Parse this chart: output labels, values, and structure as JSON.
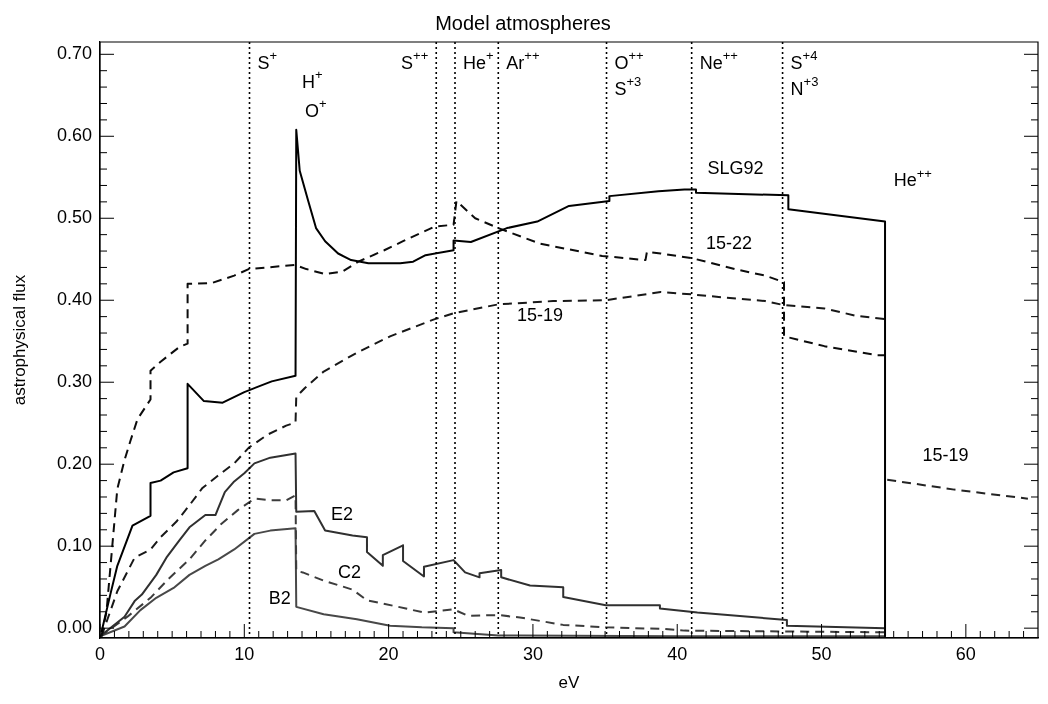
{
  "chart_data": {
    "type": "line",
    "title": "Model atmospheres",
    "xlabel": "eV",
    "ylabel": "astrophysical flux",
    "xlim": [
      0,
      65
    ],
    "ylim": [
      -0.012,
      0.715
    ],
    "xticks": [
      0,
      {
        "value": 1,
        "label": null
      },
      {
        "value": 2,
        "label": null
      },
      {
        "value": 3,
        "label": null
      },
      {
        "value": 4,
        "label": null
      },
      {
        "value": 5,
        "label": null
      },
      {
        "value": 6,
        "label": null
      },
      {
        "value": 7,
        "label": null
      },
      {
        "value": 8,
        "label": null
      },
      {
        "value": 9,
        "label": null
      },
      10,
      {
        "value": 11,
        "label": null
      },
      {
        "value": 12,
        "label": null
      },
      {
        "value": 13,
        "label": null
      },
      {
        "value": 14,
        "label": null
      },
      {
        "value": 15,
        "label": null
      },
      {
        "value": 16,
        "label": null
      },
      {
        "value": 17,
        "label": null
      },
      {
        "value": 18,
        "label": null
      },
      {
        "value": 19,
        "label": null
      },
      20,
      {
        "value": 21,
        "label": null
      },
      {
        "value": 22,
        "label": null
      },
      {
        "value": 23,
        "label": null
      },
      {
        "value": 24,
        "label": null
      },
      {
        "value": 25,
        "label": null
      },
      {
        "value": 26,
        "label": null
      },
      {
        "value": 27,
        "label": null
      },
      {
        "value": 28,
        "label": null
      },
      {
        "value": 29,
        "label": null
      },
      30,
      {
        "value": 31,
        "label": null
      },
      {
        "value": 32,
        "label": null
      },
      {
        "value": 33,
        "label": null
      },
      {
        "value": 34,
        "label": null
      },
      {
        "value": 35,
        "label": null
      },
      {
        "value": 36,
        "label": null
      },
      {
        "value": 37,
        "label": null
      },
      {
        "value": 38,
        "label": null
      },
      {
        "value": 39,
        "label": null
      },
      40,
      {
        "value": 41,
        "label": null
      },
      {
        "value": 42,
        "label": null
      },
      {
        "value": 43,
        "label": null
      },
      {
        "value": 44,
        "label": null
      },
      {
        "value": 45,
        "label": null
      },
      {
        "value": 46,
        "label": null
      },
      {
        "value": 47,
        "label": null
      },
      {
        "value": 48,
        "label": null
      },
      {
        "value": 49,
        "label": null
      },
      50,
      {
        "value": 51,
        "label": null
      },
      {
        "value": 52,
        "label": null
      },
      {
        "value": 53,
        "label": null
      },
      {
        "value": 54,
        "label": null
      },
      {
        "value": 55,
        "label": null
      },
      {
        "value": 56,
        "label": null
      },
      {
        "value": 57,
        "label": null
      },
      {
        "value": 58,
        "label": null
      },
      {
        "value": 59,
        "label": null
      },
      60,
      {
        "value": 61,
        "label": null
      },
      {
        "value": 62,
        "label": null
      },
      {
        "value": 63,
        "label": null
      },
      {
        "value": 64,
        "label": null
      }
    ],
    "yticks": [
      {
        "value": 0,
        "label": "0.00"
      },
      {
        "value": 0.02,
        "label": null
      },
      {
        "value": 0.04,
        "label": null
      },
      {
        "value": 0.06,
        "label": null
      },
      {
        "value": 0.08,
        "label": null
      },
      {
        "value": 0.1,
        "label": "0.10"
      },
      {
        "value": 0.12,
        "label": null
      },
      {
        "value": 0.14,
        "label": null
      },
      {
        "value": 0.16,
        "label": null
      },
      {
        "value": 0.18,
        "label": null
      },
      {
        "value": 0.2,
        "label": "0.20"
      },
      {
        "value": 0.22,
        "label": null
      },
      {
        "value": 0.24,
        "label": null
      },
      {
        "value": 0.26,
        "label": null
      },
      {
        "value": 0.28,
        "label": null
      },
      {
        "value": 0.3,
        "label": "0.30"
      },
      {
        "value": 0.32,
        "label": null
      },
      {
        "value": 0.34,
        "label": null
      },
      {
        "value": 0.36,
        "label": null
      },
      {
        "value": 0.38,
        "label": null
      },
      {
        "value": 0.4,
        "label": "0.40"
      },
      {
        "value": 0.42,
        "label": null
      },
      {
        "value": 0.44,
        "label": null
      },
      {
        "value": 0.46,
        "label": null
      },
      {
        "value": 0.48,
        "label": null
      },
      {
        "value": 0.5,
        "label": "0.50"
      },
      {
        "value": 0.52,
        "label": null
      },
      {
        "value": 0.54,
        "label": null
      },
      {
        "value": 0.56,
        "label": null
      },
      {
        "value": 0.58,
        "label": null
      },
      {
        "value": 0.6,
        "label": "0.60"
      },
      {
        "value": 0.62,
        "label": null
      },
      {
        "value": 0.64,
        "label": null
      },
      {
        "value": 0.66,
        "label": null
      },
      {
        "value": 0.68,
        "label": null
      },
      {
        "value": 0.7,
        "label": "0.70"
      }
    ],
    "grid": false,
    "legend": false,
    "marker": "none",
    "series": [
      {
        "name": "SLG92",
        "color": "#000000",
        "line_style": "solid",
        "x": [
          0.1,
          0.7,
          1.2,
          2.25,
          3.5,
          3.5,
          4.2,
          5.1,
          6.07,
          6.07,
          7.2,
          8.5,
          10,
          11.9,
          13.55,
          13.6,
          13.84,
          14.4,
          14.97,
          15.6,
          16.5,
          17.4,
          18.6,
          20.8,
          21.7,
          22.56,
          24.5,
          24.5,
          25.7,
          28.2,
          30.3,
          32.5,
          35.3,
          35.3,
          38.7,
          40.5,
          41.3,
          41.3,
          47.7,
          47.7,
          54.4,
          54.4
        ],
        "values": [
          -0.005,
          0.04,
          0.076,
          0.125,
          0.137,
          0.177,
          0.18,
          0.19,
          0.195,
          0.298,
          0.277,
          0.275,
          0.288,
          0.301,
          0.308,
          0.608,
          0.558,
          0.523,
          0.488,
          0.472,
          0.457,
          0.449,
          0.445,
          0.445,
          0.447,
          0.455,
          0.461,
          0.473,
          0.471,
          0.488,
          0.496,
          0.515,
          0.521,
          0.527,
          0.533,
          0.535,
          0.535,
          0.531,
          0.528,
          0.511,
          0.496,
          -0.01
        ]
      },
      {
        "name": "15-22",
        "color": "#0c0c0c",
        "line_style": "dashed",
        "x": [
          0.1,
          0.45,
          1.2,
          1.7,
          2.1,
          2.6,
          3.5,
          3.5,
          4.2,
          5.5,
          6.07,
          6.07,
          7.75,
          9.3,
          10.3,
          13.5,
          14.3,
          15.6,
          16.8,
          17.9,
          19.7,
          21,
          23.2,
          24.5,
          24.7,
          26,
          27.6,
          30.5,
          34.8,
          37.8,
          37.9,
          38.85,
          41.1,
          44,
          46.1,
          47.4,
          47.4,
          50.2,
          53.8,
          54.4
        ],
        "values": [
          -0.01,
          0.02,
          0.17,
          0.205,
          0.228,
          0.255,
          0.279,
          0.314,
          0.325,
          0.343,
          0.347,
          0.42,
          0.421,
          0.43,
          0.438,
          0.443,
          0.438,
          0.432,
          0.435,
          0.447,
          0.461,
          0.472,
          0.49,
          0.492,
          0.521,
          0.5,
          0.488,
          0.469,
          0.454,
          0.449,
          0.459,
          0.457,
          0.451,
          0.438,
          0.43,
          0.422,
          0.356,
          0.344,
          0.333,
          0.333
        ]
      },
      {
        "name": "15-19",
        "color": "#181818",
        "line_style": "dashed",
        "x": [
          0.1,
          1.2,
          2.4,
          3.5,
          4.2,
          5.3,
          6.2,
          7.1,
          8.1,
          9.3,
          10.3,
          11.6,
          12.9,
          13.55,
          13.6,
          14.2,
          15.5,
          17.8,
          20.1,
          23.2,
          24.5,
          27.6,
          31.4,
          35.05,
          38.85,
          41.1,
          43.4,
          46.1,
          47.4,
          50.2,
          52.4,
          54.4
        ],
        "values": [
          -0.01,
          0.045,
          0.086,
          0.096,
          0.111,
          0.13,
          0.15,
          0.171,
          0.185,
          0.201,
          0.22,
          0.236,
          0.247,
          0.251,
          0.282,
          0.293,
          0.313,
          0.336,
          0.356,
          0.377,
          0.384,
          0.395,
          0.399,
          0.4,
          0.41,
          0.407,
          0.403,
          0.399,
          0.394,
          0.39,
          0.381,
          0.377
        ]
      },
      {
        "color": "#242424",
        "line_style": "dashed",
        "x": [
          54.55,
          56.9,
          59.2,
          64.3
        ],
        "values": [
          0.181,
          0.175,
          0.169,
          0.158
        ]
      },
      {
        "name": "E2",
        "color": "#303030",
        "line_style": "solid",
        "x": [
          0,
          1.7,
          2.4,
          2.9,
          3.9,
          4.6,
          5.5,
          6.2,
          7.3,
          8,
          8.65,
          9.3,
          10,
          10.7,
          11.8,
          13.55,
          13.6,
          14.85,
          15.6,
          17.5,
          18.5,
          18.5,
          19.6,
          19.6,
          21,
          21,
          22.45,
          22.45,
          24.5,
          25.3,
          26.3,
          26.3,
          27.8,
          27.8,
          29.8,
          32.1,
          32.1,
          35.05,
          38.8,
          38.8,
          41.4,
          47.6,
          47.6,
          54.4
        ],
        "values": [
          -0.01,
          0.014,
          0.033,
          0.041,
          0.065,
          0.086,
          0.107,
          0.123,
          0.138,
          0.138,
          0.166,
          0.179,
          0.189,
          0.201,
          0.208,
          0.213,
          0.142,
          0.143,
          0.119,
          0.113,
          0.111,
          0.093,
          0.076,
          0.089,
          0.101,
          0.082,
          0.063,
          0.075,
          0.083,
          0.068,
          0.062,
          0.067,
          0.071,
          0.062,
          0.052,
          0.05,
          0.038,
          0.028,
          0.028,
          0.024,
          0.019,
          0.01,
          0.003,
          0
        ]
      },
      {
        "name": "C2",
        "color": "#3c3c3c",
        "line_style": "dashed",
        "x": [
          0,
          1.9,
          3.5,
          4.8,
          6.2,
          7.3,
          8.4,
          9.55,
          10.7,
          11.8,
          12.9,
          13.55,
          13.6,
          14.05,
          15.5,
          17.5,
          18.5,
          19.6,
          21.2,
          22.45,
          24.5,
          25.5,
          27.6,
          29.1,
          32.1,
          35.05,
          39.1,
          40.5,
          54.4
        ],
        "values": [
          -0.01,
          0.014,
          0.037,
          0.061,
          0.084,
          0.107,
          0.127,
          0.144,
          0.158,
          0.156,
          0.156,
          0.162,
          0.07,
          0.068,
          0.058,
          0.047,
          0.034,
          0.03,
          0.024,
          0.019,
          0.023,
          0.015,
          0.016,
          0.013,
          0.004,
          0.001,
          -0.001,
          -0.003,
          -0.005
        ]
      },
      {
        "name": "B2",
        "color": "#484848",
        "line_style": "solid",
        "x": [
          0,
          1.7,
          2.8,
          3.9,
          5.1,
          6.2,
          7.3,
          8.2,
          9.3,
          10.7,
          11.8,
          13.55,
          13.6,
          15.5,
          17.8,
          20.1,
          22.3,
          24.5,
          24.5,
          27.6,
          29.1,
          40,
          54.4
        ],
        "values": [
          -0.01,
          0.002,
          0.022,
          0.037,
          0.049,
          0.065,
          0.076,
          0.084,
          0.096,
          0.115,
          0.119,
          0.122,
          0.026,
          0.017,
          0.011,
          0.003,
          0.001,
          0,
          -0.005,
          -0.009,
          -0.009,
          -0.01,
          -0.01
        ]
      }
    ],
    "ref_lines": [
      {
        "axis": "x",
        "value": 10.36,
        "label": "S$^{+}$",
        "line_style": "dotted"
      },
      {
        "axis": "x",
        "value": 23.3,
        "label": "S$^{++}$",
        "line_style": "dotted"
      },
      {
        "axis": "x",
        "value": 24.6,
        "label": "He$^{+}$",
        "line_style": "dotted"
      },
      {
        "axis": "x",
        "value": 27.6,
        "label": "Ar$^{++}$",
        "line_style": "dotted"
      },
      {
        "axis": "x",
        "value": 35.1,
        "label": "O$^{++}$\nS$^{+3}$",
        "line_style": "dotted"
      },
      {
        "axis": "x",
        "value": 41.0,
        "label": "Ne$^{++}$",
        "line_style": "dotted"
      },
      {
        "axis": "x",
        "value": 47.3,
        "label": "S$^{+4}$\nN$^{+3}$",
        "line_style": "dotted"
      }
    ],
    "annotations": [
      "H$^{+}$",
      "O$^{+}$",
      "He$^{++}$",
      "15-19"
    ]
  }
}
